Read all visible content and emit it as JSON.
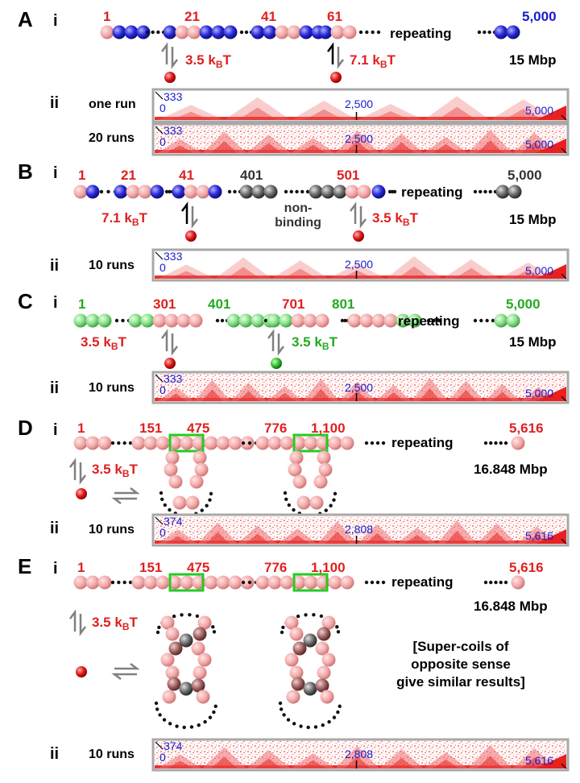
{
  "colors": {
    "pink": "#f2aaaa",
    "blue": "#2828d8",
    "red": "#e02020",
    "green": "#7ee07e",
    "grey": "#6a6a6a",
    "brown": "#a86060",
    "label_red": "#e02020",
    "label_blue": "#1a1ad0",
    "label_green": "#22aa22"
  },
  "panels": {
    "A": {
      "letter": "A",
      "sub_i": "i",
      "sub_ii": "ii",
      "labels": [
        "1",
        "21",
        "41",
        "61",
        "5,000"
      ],
      "repeating": "repeating",
      "energy_left": "3.5 k",
      "energy_left_sub": "B",
      "energy_left_T": "T",
      "energy_right": "7.1 k",
      "energy_right_sub": "B",
      "energy_right_T": "T",
      "size": "15 Mbp",
      "map1": {
        "runs": "one run",
        "top": "333",
        "origin": "0",
        "mid": "2,500",
        "end": "5,000"
      },
      "map2": {
        "runs": "20 runs",
        "top": "333",
        "origin": "0",
        "mid": "2,500",
        "end": "5,000"
      }
    },
    "B": {
      "letter": "B",
      "sub_i": "i",
      "sub_ii": "ii",
      "labels": [
        "1",
        "21",
        "41",
        "401",
        "501",
        "5,000"
      ],
      "repeating": "repeating",
      "nonbinding_1": "non-",
      "nonbinding_2": "binding",
      "energy_left": "7.1 k",
      "energy_left_sub": "B",
      "energy_left_T": "T",
      "energy_right": "3.5 k",
      "energy_right_sub": "B",
      "energy_right_T": "T",
      "size": "15 Mbp",
      "map1": {
        "runs": "10 runs",
        "top": "333",
        "origin": "0",
        "mid": "2,500",
        "end": "5,000"
      }
    },
    "C": {
      "letter": "C",
      "sub_i": "i",
      "sub_ii": "ii",
      "labels": [
        "1",
        "301",
        "401",
        "701",
        "801",
        "5,000"
      ],
      "repeating": "repeating",
      "energy_left": "3.5 k",
      "energy_left_sub": "B",
      "energy_left_T": "T",
      "energy_right": "3.5 k",
      "energy_right_sub": "B",
      "energy_right_T": "T",
      "size": "15 Mbp",
      "map1": {
        "runs": "10 runs",
        "top": "333",
        "origin": "0",
        "mid": "2,500",
        "end": "5,000"
      }
    },
    "D": {
      "letter": "D",
      "sub_i": "i",
      "sub_ii": "ii",
      "labels": [
        "1",
        "151",
        "475",
        "776",
        "1,100",
        "5,616"
      ],
      "repeating": "repeating",
      "energy": "3.5 k",
      "energy_sub": "B",
      "energy_T": "T",
      "size": "16.848 Mbp",
      "map1": {
        "runs": "10 runs",
        "top": "374",
        "origin": "0",
        "mid": "2,808",
        "end": "5,616"
      }
    },
    "E": {
      "letter": "E",
      "sub_i": "i",
      "sub_ii": "ii",
      "labels": [
        "1",
        "151",
        "475",
        "776",
        "1,100",
        "5,616"
      ],
      "repeating": "repeating",
      "energy": "3.5 k",
      "energy_sub": "B",
      "energy_T": "T",
      "size": "16.848 Mbp",
      "note": [
        "[Super-coils of",
        "opposite sense",
        "give similar results]"
      ],
      "map1": {
        "runs": "10 runs",
        "top": "374",
        "origin": "0",
        "mid": "2,808",
        "end": "5,616"
      }
    }
  }
}
